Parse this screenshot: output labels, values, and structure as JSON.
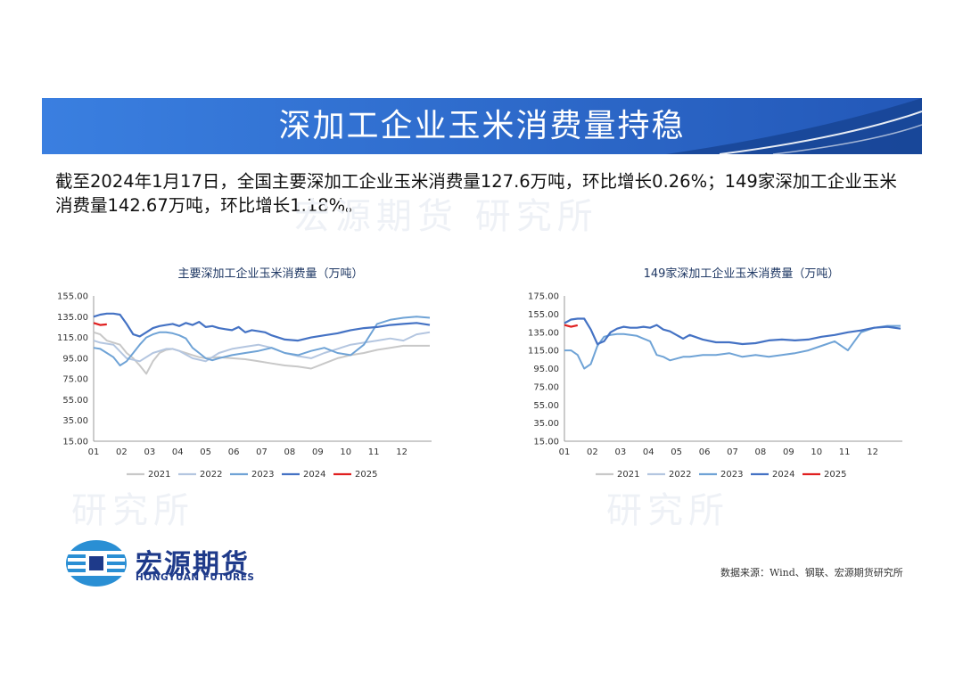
{
  "banner": {
    "title": "深加工企业玉米消费量持稳"
  },
  "summary": "截至2024年1月17日，全国主要深加工企业玉米消费量127.6万吨，环比增长0.26%；149家深加工企业玉米消费量142.67万吨，环比增长1.18%。",
  "watermark": {
    "text": "宏源期货 研究所",
    "text2": "研究所"
  },
  "logo": {
    "cn": "宏源期货",
    "en": "HONGYUAN FUTURES"
  },
  "source": "数据来源：Wind、钢联、宏源期货研究所",
  "colors": {
    "2021": "#c8c8c8",
    "2022": "#b4c6e0",
    "2023": "#6fa3d6",
    "2024": "#4472c4",
    "2025": "#e02020",
    "banner": "#2e6fd0"
  },
  "chart_data": [
    {
      "type": "line",
      "title": "主要深加工企业玉米消费量（万吨）",
      "x_ticks": [
        "01",
        "02",
        "03",
        "04",
        "05",
        "06",
        "07",
        "08",
        "09",
        "10",
        "11",
        "12"
      ],
      "y_ticks": [
        "15.00",
        "35.00",
        "55.00",
        "75.00",
        "95.00",
        "115.00",
        "135.00",
        "155.00"
      ],
      "ylim": [
        15,
        155
      ],
      "x_unit": "week",
      "series": [
        {
          "name": "2021",
          "x": [
            1,
            2,
            3,
            5,
            6,
            7,
            8,
            9,
            10,
            11,
            12,
            13,
            14,
            15,
            16,
            17,
            18,
            20,
            22,
            24,
            26,
            28,
            30,
            32,
            34,
            36,
            38,
            40,
            42,
            44,
            46,
            48,
            50,
            52
          ],
          "y": [
            120,
            118,
            112,
            108,
            100,
            95,
            88,
            80,
            92,
            100,
            103,
            104,
            102,
            100,
            98,
            96,
            95,
            96,
            95,
            94,
            92,
            90,
            88,
            87,
            85,
            90,
            95,
            98,
            100,
            103,
            105,
            107,
            107,
            107
          ]
        },
        {
          "name": "2022",
          "x": [
            1,
            2,
            4,
            6,
            8,
            10,
            12,
            13,
            14,
            16,
            18,
            20,
            22,
            24,
            26,
            28,
            30,
            32,
            34,
            36,
            38,
            40,
            42,
            44,
            46,
            48,
            50,
            52
          ],
          "y": [
            112,
            110,
            108,
            95,
            92,
            100,
            104,
            104,
            102,
            95,
            92,
            100,
            104,
            106,
            108,
            105,
            100,
            97,
            95,
            100,
            104,
            108,
            110,
            112,
            114,
            112,
            118,
            120
          ]
        },
        {
          "name": "2023",
          "x": [
            1,
            2,
            3,
            4,
            5,
            6,
            7,
            8,
            9,
            10,
            11,
            12,
            13,
            14,
            15,
            16,
            17,
            18,
            19,
            20,
            22,
            24,
            26,
            28,
            30,
            32,
            34,
            36,
            38,
            40,
            42,
            44,
            46,
            48,
            50,
            52
          ],
          "y": [
            105,
            104,
            100,
            96,
            88,
            92,
            100,
            108,
            115,
            118,
            120,
            120,
            119,
            117,
            114,
            105,
            100,
            95,
            93,
            95,
            98,
            100,
            102,
            105,
            100,
            98,
            102,
            105,
            100,
            98,
            108,
            128,
            132,
            134,
            135,
            134
          ]
        },
        {
          "name": "2024",
          "x": [
            1,
            2,
            3,
            4,
            5,
            6,
            7,
            8,
            9,
            10,
            11,
            12,
            13,
            14,
            15,
            16,
            17,
            18,
            19,
            20,
            21,
            22,
            23,
            24,
            25,
            26,
            27,
            28,
            30,
            32,
            34,
            36,
            38,
            40,
            42,
            44,
            46,
            48,
            50,
            52
          ],
          "y": [
            135,
            137,
            138,
            138,
            137,
            128,
            118,
            116,
            120,
            124,
            126,
            127,
            128,
            126,
            129,
            127,
            130,
            125,
            126,
            124,
            123,
            122,
            125,
            120,
            122,
            121,
            120,
            117,
            113,
            112,
            115,
            117,
            119,
            122,
            124,
            125,
            127,
            128,
            129,
            127
          ]
        },
        {
          "name": "2025",
          "x": [
            1,
            2,
            3
          ],
          "y": [
            129,
            127,
            127.6
          ]
        }
      ]
    },
    {
      "type": "line",
      "title": "149家深加工企业玉米消费量（万吨）",
      "x_ticks": [
        "01",
        "02",
        "03",
        "04",
        "05",
        "06",
        "07",
        "08",
        "09",
        "10",
        "11",
        "12"
      ],
      "y_ticks": [
        "15.00",
        "35.00",
        "55.00",
        "75.00",
        "95.00",
        "115.00",
        "135.00",
        "155.00",
        "175.00"
      ],
      "ylim": [
        15,
        175
      ],
      "x_unit": "week",
      "series": [
        {
          "name": "2021",
          "x": [],
          "y": []
        },
        {
          "name": "2022",
          "x": [],
          "y": []
        },
        {
          "name": "2023",
          "x": [
            1,
            2,
            3,
            4,
            5,
            6,
            7,
            8,
            9,
            10,
            11,
            12,
            13,
            14,
            15,
            16,
            17,
            18,
            19,
            20,
            22,
            24,
            26,
            28,
            30,
            32,
            34,
            36,
            38,
            40,
            42,
            44,
            46,
            48,
            50,
            52
          ],
          "y": [
            115,
            115,
            110,
            95,
            100,
            120,
            130,
            132,
            133,
            133,
            132,
            131,
            128,
            125,
            110,
            108,
            104,
            106,
            108,
            108,
            110,
            110,
            112,
            108,
            110,
            108,
            110,
            112,
            115,
            120,
            125,
            115,
            135,
            140,
            142,
            142
          ]
        },
        {
          "name": "2024",
          "x": [
            1,
            2,
            3,
            4,
            5,
            6,
            7,
            8,
            9,
            10,
            11,
            12,
            13,
            14,
            15,
            16,
            17,
            18,
            19,
            20,
            22,
            24,
            26,
            28,
            30,
            32,
            34,
            36,
            38,
            40,
            42,
            44,
            46,
            48,
            50,
            52
          ],
          "y": [
            145,
            149,
            150,
            150,
            138,
            122,
            125,
            135,
            139,
            141,
            140,
            140,
            141,
            140,
            143,
            138,
            136,
            132,
            128,
            132,
            127,
            124,
            124,
            122,
            123,
            126,
            127,
            126,
            127,
            130,
            132,
            135,
            137,
            140,
            141,
            139
          ]
        },
        {
          "name": "2025",
          "x": [
            1,
            2,
            3
          ],
          "y": [
            143,
            141,
            142.67
          ]
        }
      ]
    }
  ]
}
